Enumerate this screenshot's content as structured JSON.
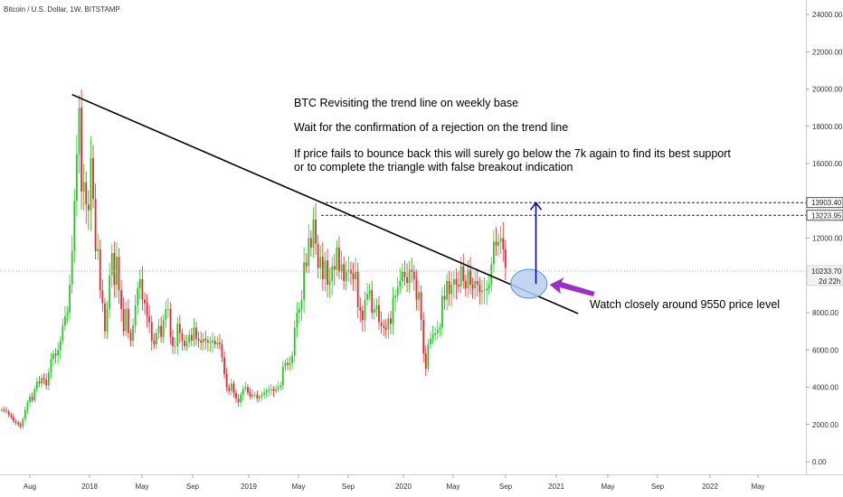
{
  "symbol_title": "Bitcoin / U.S. Dollar, 1W, BITSTAMP",
  "annotations": {
    "line1": "BTC Revisiting the trend line on weekly base",
    "line2": "Wait for the confirmation of a rejection on the trend line",
    "line3": "If price fails to bounce back this will surely go below the 7k again to find its best support",
    "line4": "or to complete the triangle with false breakout indication",
    "watch": "Watch closely around 9550 price level"
  },
  "price_tags": {
    "level_high": "13903.40",
    "level_low": "13223.95",
    "last_price": "10233.70",
    "countdown": "2d 22h"
  },
  "colors": {
    "up": "#26c826",
    "down": "#e8262f",
    "trendline": "#000000",
    "arrow": "#0a0a8a",
    "ellipse_fill": "#b7cef0",
    "ellipse_stroke": "#5c8fd8",
    "purple_arrow": "#9b2fc9"
  },
  "chart_data": {
    "type": "candlestick",
    "timeframe": "1W",
    "y_axis": {
      "ticks": [
        "24000.00",
        "22000.00",
        "20000.00",
        "18000.00",
        "16000.00",
        "14000.00",
        "12000.00",
        "10000.00",
        "8000.00",
        "6000.00",
        "4000.00",
        "2000.00",
        "0.00"
      ],
      "range": [
        -800,
        25000
      ],
      "position": "right"
    },
    "x_axis": {
      "ticks": [
        "Aug",
        "2018",
        "May",
        "Sep",
        "2019",
        "May",
        "Sep",
        "2020",
        "May",
        "Sep",
        "2021",
        "May",
        "Sep",
        "2022",
        "May"
      ]
    },
    "weekly_closes": [
      2800,
      2750,
      2700,
      2500,
      2400,
      2200,
      2100,
      2000,
      1900,
      2300,
      2800,
      3200,
      3500,
      3300,
      3900,
      4300,
      4200,
      4500,
      4400,
      4100,
      4800,
      5500,
      5800,
      5700,
      6000,
      6500,
      7300,
      7800,
      8000,
      9500,
      11300,
      14000,
      16500,
      19000,
      14500,
      15000,
      13800,
      13500,
      16300,
      14100,
      11300,
      11400,
      9200,
      8500,
      7000,
      8200,
      10000,
      11200,
      9500,
      11000,
      9200,
      8200,
      7000,
      8200,
      6900,
      6500,
      7300,
      8400,
      9300,
      9800,
      8700,
      8500,
      7800,
      7500,
      6500,
      6300,
      6900,
      7300,
      6700,
      7600,
      8200,
      8200,
      6700,
      6200,
      6200,
      7400,
      6900,
      6500,
      6200,
      6400,
      6800,
      6500,
      7200,
      6600,
      6500,
      6400,
      6600,
      6500,
      6400,
      6400,
      6500,
      6300,
      6400,
      6300,
      5600,
      4700,
      4000,
      3800,
      4200,
      3700,
      3400,
      3200,
      3600,
      3900,
      4000,
      3700,
      3500,
      3600,
      3600,
      3400,
      3500,
      3600,
      3700,
      3800,
      3900,
      3900,
      3800,
      3900,
      4000,
      4100,
      5100,
      5300,
      5200,
      5300,
      5700,
      7200,
      8000,
      8200,
      8700,
      10700,
      10500,
      12000,
      11500,
      13000,
      11700,
      10400,
      11000,
      9800,
      10800,
      9500,
      9700,
      10500,
      10300,
      11500,
      10200,
      10600,
      9700,
      10200,
      10300,
      10100,
      9800,
      10200,
      8300,
      8100,
      7600,
      8700,
      9000,
      9200,
      8000,
      8200,
      8400,
      7500,
      7300,
      7200,
      7100,
      7700,
      7400,
      8800,
      8900,
      9400,
      9700,
      10200,
      9900,
      9600,
      10300,
      10200,
      9800,
      8700,
      9100,
      7600,
      5800,
      5000,
      6300,
      6600,
      6800,
      6900,
      7100,
      7200,
      8900,
      8700,
      9700,
      9000,
      9500,
      9800,
      9500,
      9400,
      10500,
      9700,
      9300,
      10300,
      9500,
      9300,
      9700,
      9500,
      9100,
      9200,
      9200,
      9300,
      9500,
      10600,
      11800,
      11600,
      11800,
      12000,
      11400,
      10400
    ],
    "annotations_lines": [
      {
        "name": "trendline",
        "from": {
          "week": 30,
          "price": 19700
        },
        "to": {
          "week": 246,
          "price": 7950
        }
      },
      {
        "name": "level-high",
        "price": 13903.4,
        "style": "dashed"
      },
      {
        "name": "level-low",
        "price": 13223.95,
        "style": "dashed"
      },
      {
        "name": "last-price",
        "price": 10233.7,
        "style": "dotted"
      },
      {
        "name": "up-arrow",
        "from": {
          "week": 228,
          "price": 9550
        },
        "to": {
          "week": 228,
          "price": 13900
        }
      },
      {
        "name": "support-zone",
        "center": {
          "week": 225,
          "price": 9550
        }
      }
    ]
  }
}
